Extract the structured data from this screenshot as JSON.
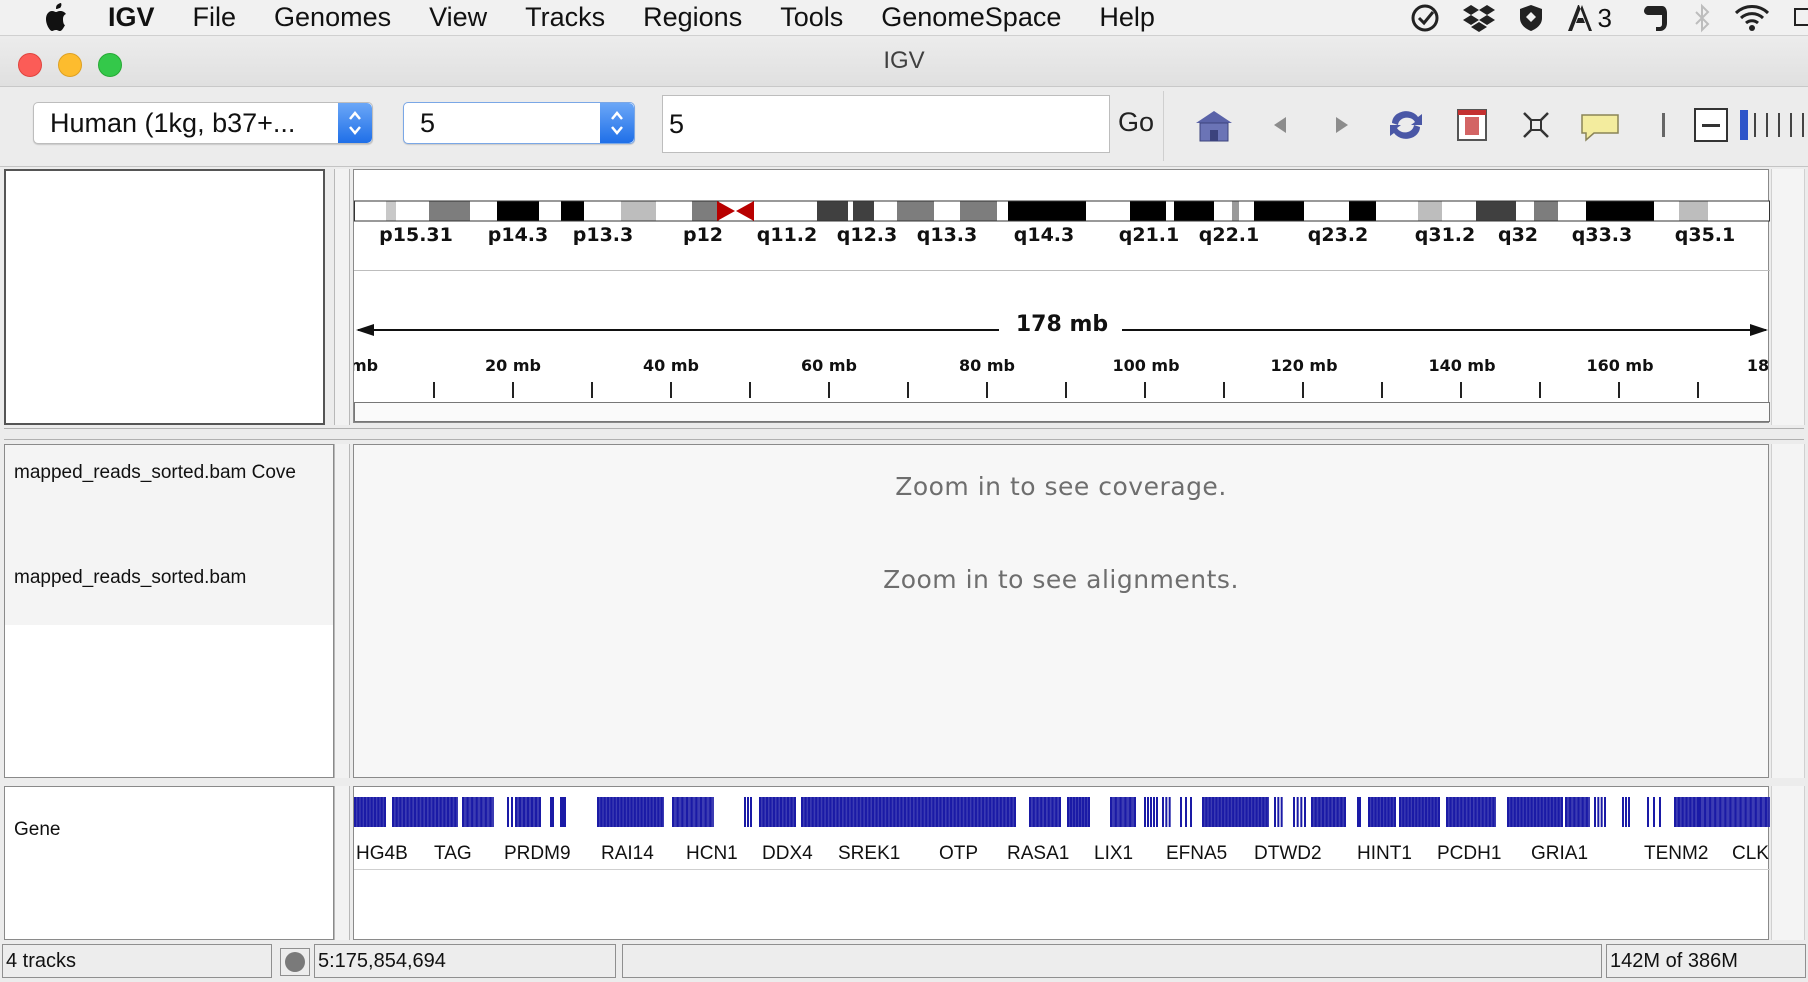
{
  "menubar": {
    "items": [
      "IGV",
      "File",
      "Genomes",
      "View",
      "Tracks",
      "Regions",
      "Tools",
      "GenomeSpace",
      "Help"
    ],
    "status_count": "3"
  },
  "window": {
    "title": "IGV"
  },
  "toolbar": {
    "genome": "Human (1kg, b37+...",
    "chromosome": "5",
    "locus": "5",
    "go_label": "Go"
  },
  "ideogram": {
    "bands": [
      "p15.31",
      "p14.3",
      "p13.3",
      "p12",
      "q11.2",
      "q12.3",
      "q13.3",
      "q14.3",
      "q21.1",
      "q22.1",
      "q23.2",
      "q31.2",
      "q32",
      "q33.3",
      "q35.1"
    ]
  },
  "ruler": {
    "span": "178 mb",
    "ticks": [
      "mb",
      "20 mb",
      "40 mb",
      "60 mb",
      "80 mb",
      "100 mb",
      "120 mb",
      "140 mb",
      "160 mb",
      "18"
    ]
  },
  "tracks": {
    "coverage_name": "mapped_reads_sorted.bam Cove",
    "alignment_name": "mapped_reads_sorted.bam",
    "coverage_msg": "Zoom in to see coverage.",
    "alignment_msg": "Zoom in to see alignments.",
    "gene_name": "Gene",
    "genes": [
      "HG4B",
      "TAG",
      "PRDM9",
      "RAI14",
      "HCN1",
      "DDX4",
      "SREK1",
      "OTP",
      "RASA1",
      "LIX1",
      "EFNA5",
      "DTWD2",
      "HINT1",
      "PCDH1",
      "GRIA1",
      "TENM2",
      "CLK"
    ],
    "gene_color": "#1a1aa6"
  },
  "status": {
    "track_count": "4 tracks",
    "position": "5:175,854,694",
    "message": "",
    "memory": "142M of 386M"
  }
}
